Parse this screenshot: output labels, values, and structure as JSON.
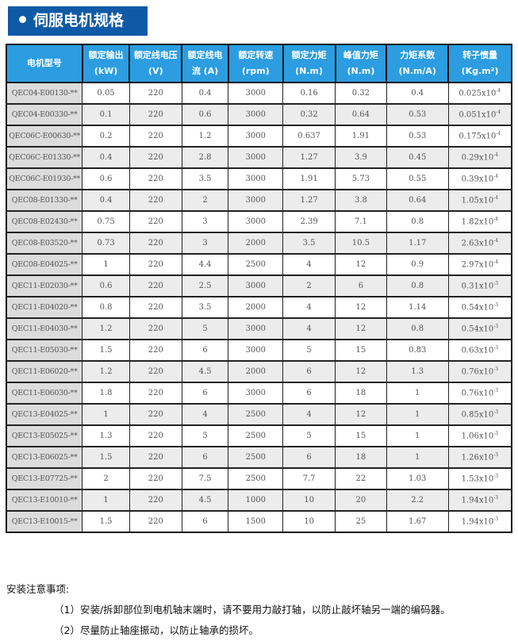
{
  "title": "伺服电机规格",
  "headers": [
    [
      "电机型号",
      ""
    ],
    [
      "额定输出",
      "(kW)"
    ],
    [
      "额定线电压",
      "(V)"
    ],
    [
      "额定线电",
      "流 (A)"
    ],
    [
      "额定转速",
      "(rpm)"
    ],
    [
      "额定力矩",
      "(N.m)"
    ],
    [
      "峰值力矩",
      "(N.m)"
    ],
    [
      "力矩系数",
      "(N.m/A)"
    ],
    [
      "转子惯量",
      "(Kg.m²)"
    ]
  ],
  "rows": [
    [
      "QEC04-E00130-**",
      "0.05",
      "220",
      "0.4",
      "3000",
      "0.16",
      "0.32",
      "0.4",
      "0.025x10",
      "-4"
    ],
    [
      "QEC04-E00330-**",
      "0.1",
      "220",
      "0.6",
      "3000",
      "0.32",
      "0.64",
      "0.53",
      "0.051x10",
      "-4"
    ],
    [
      "QEC06C-E00630-**",
      "0.2",
      "220",
      "1.2",
      "3000",
      "0.637",
      "1.91",
      "0.53",
      "0.175x10",
      "-4"
    ],
    [
      "QEC06C-E01330-**",
      "0.4",
      "220",
      "2.8",
      "3000",
      "1.27",
      "3.9",
      "0.45",
      "0.29x10",
      "-4"
    ],
    [
      "QEC06C-E01930-**",
      "0.6",
      "220",
      "3.5",
      "3000",
      "1.91",
      "5.73",
      "0.55",
      "0.39x10",
      "-4"
    ],
    [
      "QEC08-E01330-**",
      "0.4",
      "220",
      "2",
      "3000",
      "1.27",
      "3.8",
      "0.64",
      "1.05x10",
      "-4"
    ],
    [
      "QEC08-E02430-**",
      "0.75",
      "220",
      "3",
      "3000",
      "2.39",
      "7.1",
      "0.8",
      "1.82x10",
      "-4"
    ],
    [
      "QEC08-E03520-**",
      "0.73",
      "220",
      "3",
      "2000",
      "3.5",
      "10.5",
      "1.17",
      "2.63x10",
      "-4"
    ],
    [
      "QEC08-E04025-**",
      "1",
      "220",
      "4.4",
      "2500",
      "4",
      "12",
      "0.9",
      "2.97x10",
      "-4"
    ],
    [
      "QEC11-E02030-**",
      "0.6",
      "220",
      "2.5",
      "3000",
      "2",
      "6",
      "0.8",
      "0.31x10",
      "-3"
    ],
    [
      "QEC11-E04020-**",
      "0.8",
      "220",
      "3.5",
      "2000",
      "4",
      "12",
      "1.14",
      "0.54x10",
      "-3"
    ],
    [
      "QEC11-E04030-**",
      "1.2",
      "220",
      "5",
      "3000",
      "4",
      "12",
      "0.8",
      "0.54x10",
      "-3"
    ],
    [
      "QEC11-E05030-**",
      "1.5",
      "220",
      "6",
      "3000",
      "5",
      "15",
      "0.83",
      "0.63x10",
      "-3"
    ],
    [
      "QEC11-E06020-**",
      "1.2",
      "220",
      "4.5",
      "2000",
      "6",
      "12",
      "1.3",
      "0.76x10",
      "-3"
    ],
    [
      "QEC11-E06030-**",
      "1.8",
      "220",
      "6",
      "3000",
      "6",
      "18",
      "1",
      "0.76x10",
      "-3"
    ],
    [
      "QEC13-E04025-**",
      "1",
      "220",
      "4",
      "2500",
      "4",
      "12",
      "1",
      "0.85x10",
      "-3"
    ],
    [
      "QEC13-E05025-**",
      "1.3",
      "220",
      "5",
      "2500",
      "5",
      "15",
      "1",
      "1.06x10",
      "-3"
    ],
    [
      "QEC13-E06025-**",
      "1.5",
      "220",
      "6",
      "2500",
      "6",
      "18",
      "1",
      "1.26x10",
      "-3"
    ],
    [
      "QEC13-E07725-**",
      "2",
      "220",
      "7.5",
      "2500",
      "7.7",
      "22",
      "1.03",
      "1.53x10",
      "-3"
    ],
    [
      "QEC13-E10010-**",
      "1",
      "220",
      "4.5",
      "1000",
      "10",
      "20",
      "2.2",
      "1.94x10",
      "-3"
    ],
    [
      "QEC13-E10015-**",
      "1.5",
      "220",
      "6",
      "1500",
      "10",
      "25",
      "1.67",
      "1.94x10",
      "-3"
    ]
  ],
  "notes": {
    "heading": "安装注意事项:",
    "items": [
      "（1）安装/拆卸部位到电机轴末端时，请不要用力敲打轴，以防止敲坏轴另一端的编码器。",
      "（2）尽量防止轴座振动，以防止轴承的损坏。"
    ]
  }
}
